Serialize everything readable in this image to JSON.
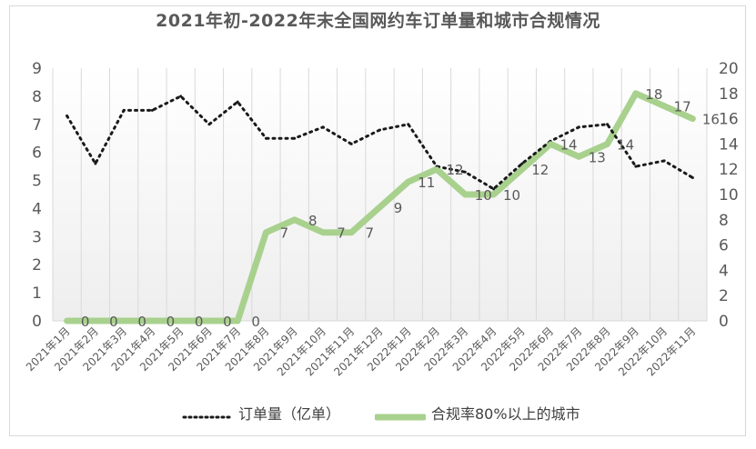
{
  "chart_data": {
    "type": "line",
    "title": "2021年初-2022年末全国网约车订单量和城市合规情况",
    "categories": [
      "2021年1月",
      "2021年2月",
      "2021年3月",
      "2021年4月",
      "2021年5月",
      "2021年6月",
      "2021年7月",
      "2021年8月",
      "2021年9月",
      "2021年10月",
      "2021年11月",
      "2021年12月",
      "2022年1月",
      "2022年2月",
      "2022年3月",
      "2022年4月",
      "2022年5月",
      "2022年6月",
      "2022年7月",
      "2022年8月",
      "2022年9月",
      "2022年10月",
      "2022年11月"
    ],
    "y_left": {
      "ticks": [
        "0",
        "1",
        "2",
        "3",
        "4",
        "5",
        "6",
        "7",
        "8",
        "9"
      ],
      "ylim": [
        0,
        9
      ]
    },
    "y_right": {
      "ticks": [
        "0",
        "2",
        "4",
        "6",
        "8",
        "10",
        "12",
        "14",
        "16",
        "18",
        "20"
      ],
      "ylim": [
        0,
        20
      ]
    },
    "series": [
      {
        "name": "订单量（亿单）",
        "axis": "left",
        "style": "dotted",
        "color": "#1a1a1a",
        "values": [
          7.3,
          5.6,
          7.5,
          7.5,
          8.0,
          7.0,
          7.8,
          6.5,
          6.5,
          6.9,
          6.3,
          6.8,
          7.0,
          5.5,
          5.3,
          4.7,
          5.6,
          6.4,
          6.9,
          7.0,
          5.5,
          5.7,
          5.1
        ]
      },
      {
        "name": "合规率80%以上的城市",
        "axis": "right",
        "style": "solid",
        "color": "#a9d18e",
        "values": [
          0,
          0,
          0,
          0,
          0,
          0,
          0,
          7,
          8,
          7,
          7,
          9,
          11,
          12,
          10,
          10,
          12,
          14,
          13,
          14,
          18,
          17,
          16
        ],
        "data_labels": [
          "0",
          "0",
          "0",
          "0",
          "0",
          "0",
          "0",
          "7",
          "8",
          "7",
          "7",
          "9",
          "11",
          "12",
          "10",
          "10",
          "12",
          "14",
          "13",
          "14",
          "18",
          "17",
          "16"
        ]
      }
    ],
    "grid": "vertical",
    "legend": "bottom"
  }
}
